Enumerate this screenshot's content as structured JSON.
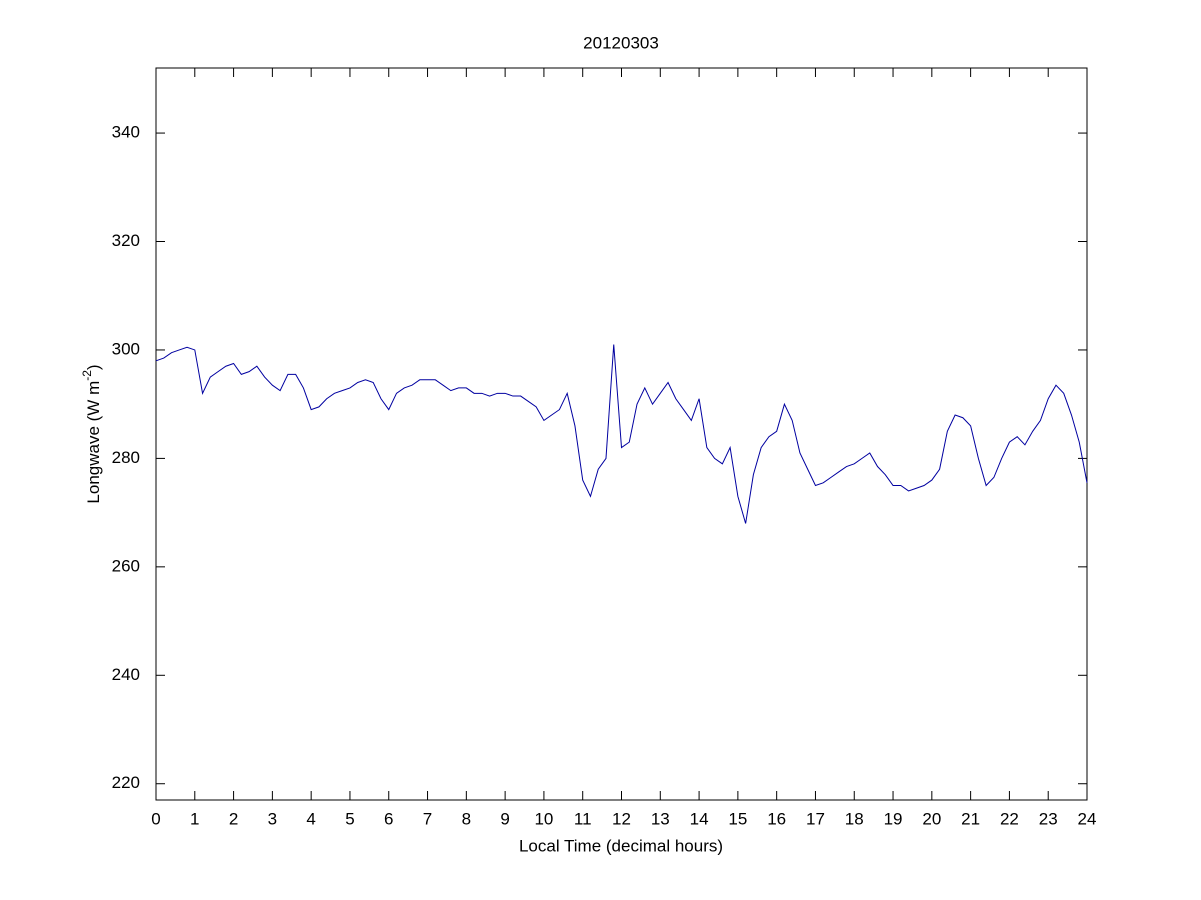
{
  "chart_data": {
    "type": "line",
    "title": "20120303",
    "xlabel": "Local Time (decimal hours)",
    "ylabel": {
      "text": "Longwave (W m",
      "superscript": "-2",
      "suffix": ")"
    },
    "xlim": [
      0,
      24
    ],
    "xticks": [
      0,
      1,
      2,
      3,
      4,
      5,
      6,
      7,
      8,
      9,
      10,
      11,
      12,
      13,
      14,
      15,
      16,
      17,
      18,
      19,
      20,
      21,
      22,
      23,
      24
    ],
    "ylim": [
      217,
      352
    ],
    "yticks": [
      220,
      240,
      260,
      280,
      300,
      320,
      340
    ],
    "grid": false,
    "series": [
      {
        "color": "#0000a0",
        "x": [
          0,
          0.2,
          0.4,
          0.6,
          0.8,
          1,
          1.2,
          1.4,
          1.6,
          1.8,
          2,
          2.2,
          2.4,
          2.6,
          2.8,
          3,
          3.2,
          3.4,
          3.6,
          3.8,
          4,
          4.2,
          4.4,
          4.6,
          4.8,
          5,
          5.2,
          5.4,
          5.6,
          5.8,
          6,
          6.2,
          6.4,
          6.6,
          6.8,
          7,
          7.2,
          7.4,
          7.6,
          7.8,
          8,
          8.2,
          8.4,
          8.6,
          8.8,
          9,
          9.2,
          9.4,
          9.6,
          9.8,
          10,
          10.2,
          10.4,
          10.6,
          10.8,
          11,
          11.2,
          11.4,
          11.6,
          11.8,
          12,
          12.2,
          12.4,
          12.6,
          12.8,
          13,
          13.2,
          13.4,
          13.6,
          13.8,
          14,
          14.2,
          14.4,
          14.6,
          14.8,
          15,
          15.2,
          15.4,
          15.6,
          15.8,
          16,
          16.2,
          16.4,
          16.6,
          16.8,
          17,
          17.2,
          17.4,
          17.6,
          17.8,
          18,
          18.2,
          18.4,
          18.6,
          18.8,
          19,
          19.2,
          19.4,
          19.6,
          19.8,
          20,
          20.2,
          20.4,
          20.6,
          20.8,
          21,
          21.2,
          21.4,
          21.6,
          21.8,
          22,
          22.2,
          22.4,
          22.6,
          22.8,
          23,
          23.2,
          23.4,
          23.6,
          23.8,
          24
        ],
        "values": [
          298,
          298.5,
          299.5,
          300,
          300.5,
          300,
          292,
          295,
          296,
          297,
          297.5,
          295.5,
          296,
          297,
          295,
          293.5,
          292.5,
          295.5,
          295.5,
          293,
          289,
          289.5,
          291,
          292,
          292.5,
          293,
          294,
          294.5,
          294,
          291,
          289,
          292,
          293,
          293.5,
          294.5,
          294.5,
          294.5,
          293.5,
          292.5,
          293,
          293,
          292,
          292,
          291.5,
          292,
          292,
          291.5,
          291.5,
          290.5,
          289.5,
          287,
          288,
          289,
          292,
          286,
          276,
          273,
          278,
          280,
          301,
          282,
          283,
          290,
          293,
          290,
          292,
          294,
          291,
          289,
          287,
          291,
          282,
          280,
          279,
          282,
          273,
          268,
          277,
          282,
          284,
          285,
          290,
          287,
          281,
          278,
          275,
          275.5,
          276.5,
          277.5,
          278.5,
          279,
          280,
          281,
          278.5,
          277,
          275,
          275,
          274,
          274.5,
          275,
          276,
          278,
          285,
          288,
          287.5,
          286,
          280,
          275,
          276.5,
          280,
          283,
          284,
          282.5,
          285,
          287,
          291,
          293.5,
          292,
          288,
          283,
          275.5
        ]
      }
    ]
  }
}
